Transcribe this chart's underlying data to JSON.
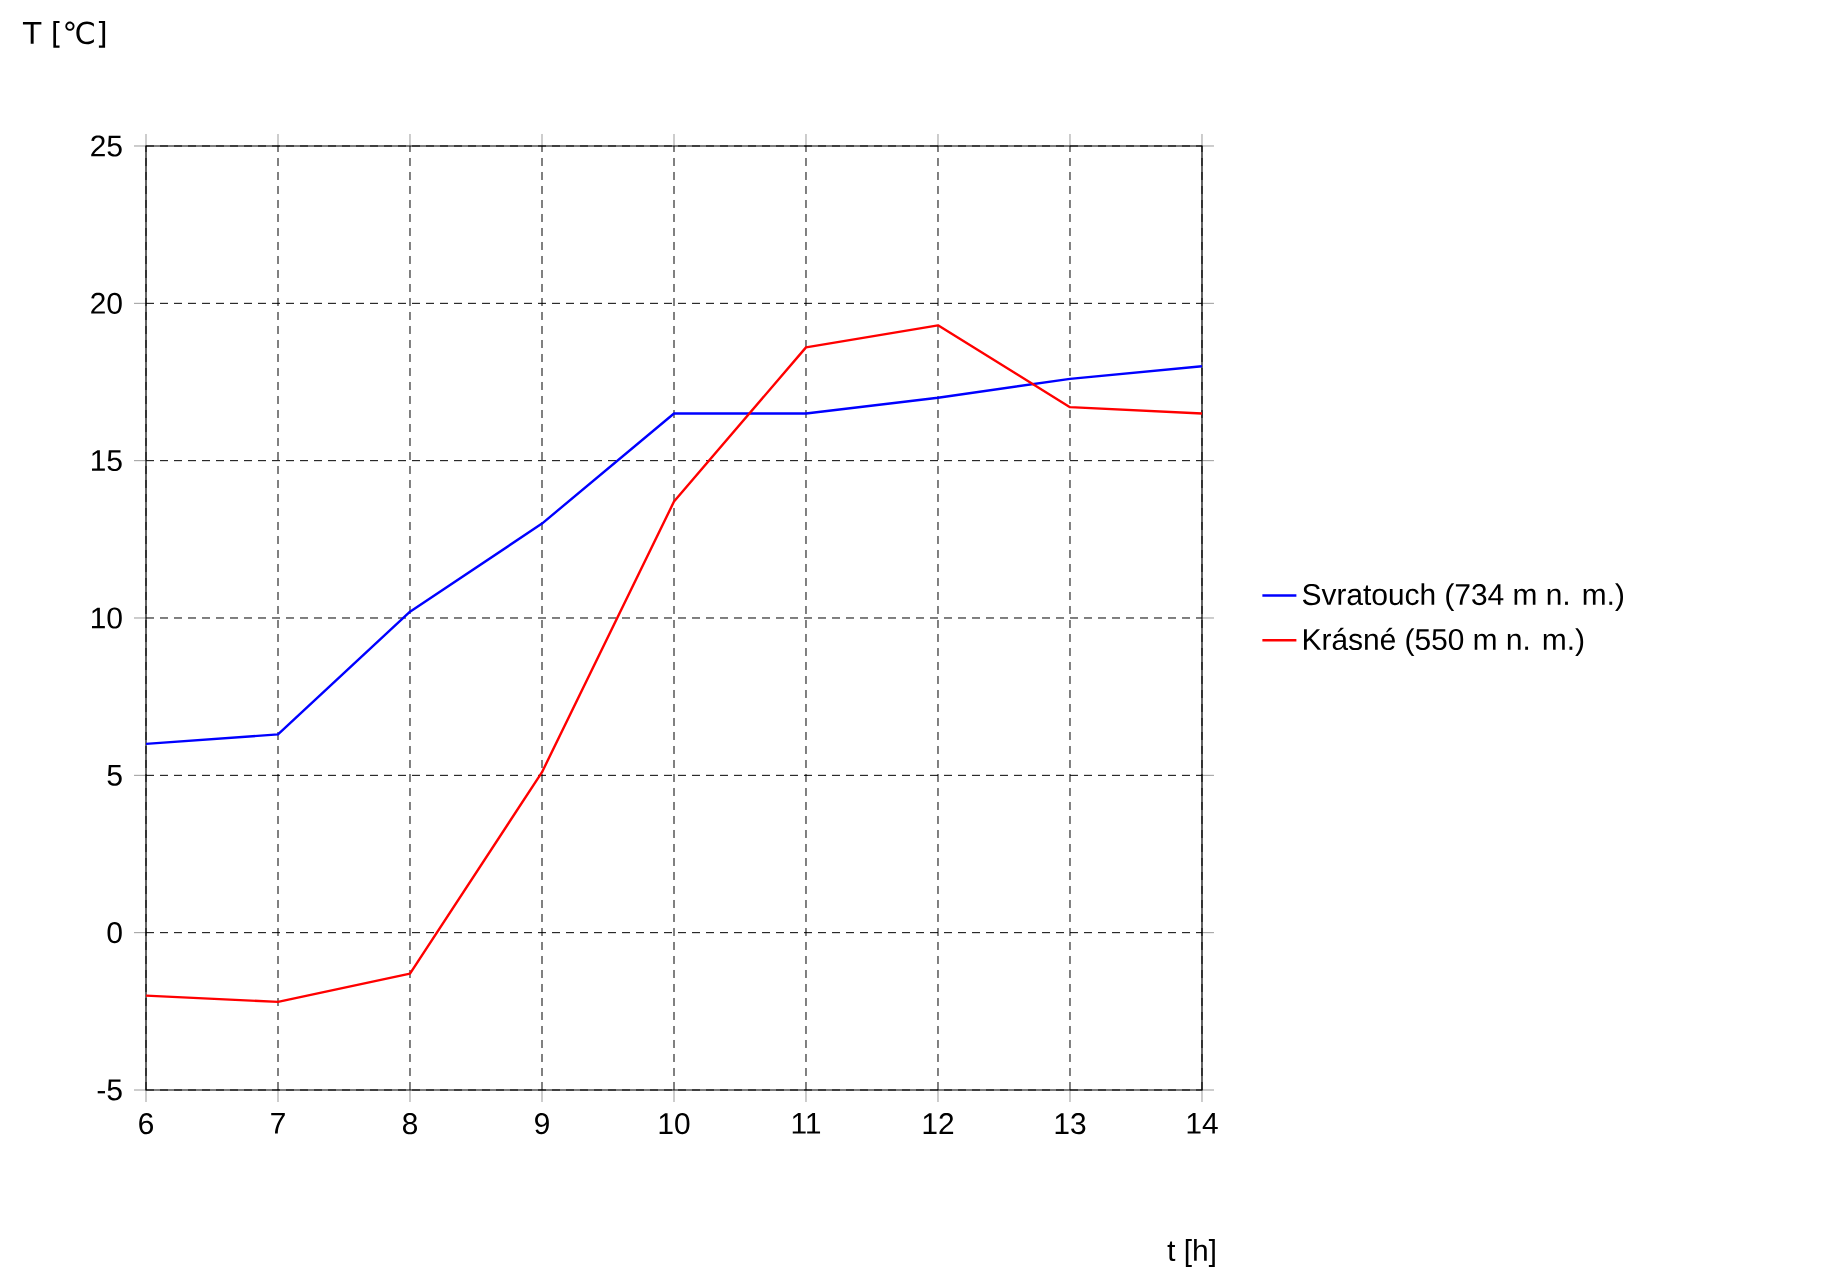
{
  "chart_data": {
    "type": "line",
    "xlabel": "t [h]",
    "ylabel": "T [℃]",
    "x": [
      6,
      7,
      8,
      9,
      10,
      11,
      12,
      13,
      14
    ],
    "series": [
      {
        "name": "Svratouch (734 m n. m.)",
        "color": "#0000ff",
        "values": [
          6.0,
          6.3,
          10.2,
          13.0,
          16.5,
          16.5,
          17.0,
          17.6,
          18.0
        ]
      },
      {
        "name": "Krásné (550 m n. m.)",
        "color": "#ff0000",
        "values": [
          -2.0,
          -2.2,
          -1.3,
          5.1,
          13.7,
          18.6,
          19.3,
          16.7,
          16.5
        ]
      }
    ],
    "xlim": [
      6,
      14
    ],
    "ylim": [
      -5,
      25
    ],
    "xticks": [
      6,
      7,
      8,
      9,
      10,
      11,
      12,
      13,
      14
    ],
    "yticks": [
      -5,
      0,
      5,
      10,
      15,
      20,
      25
    ],
    "grid": true,
    "legend": "right",
    "marker": "none",
    "line_style": "solid"
  }
}
